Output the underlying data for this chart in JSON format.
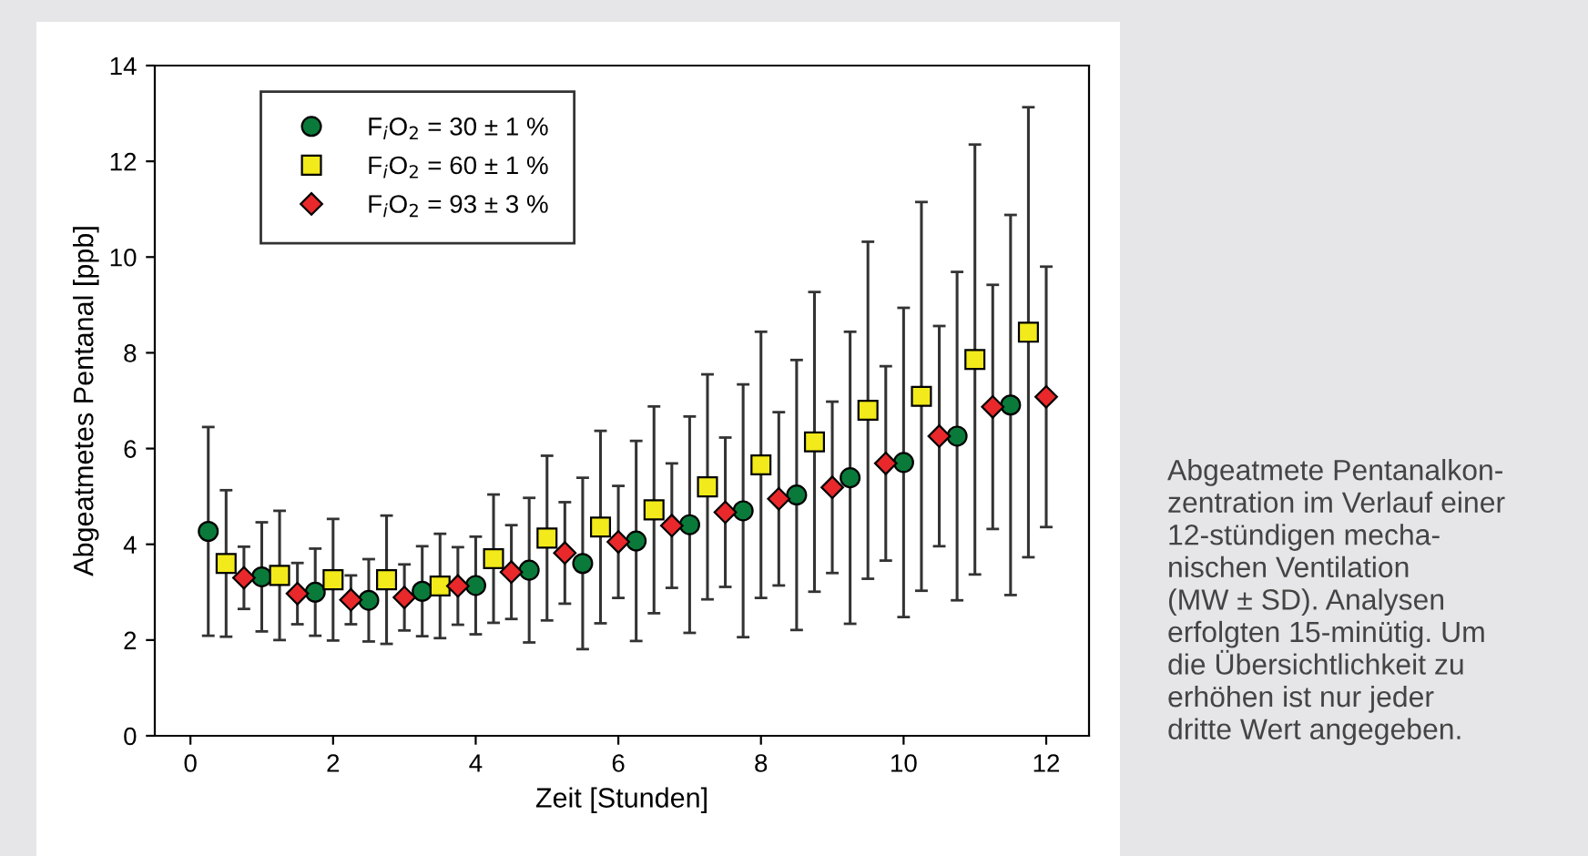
{
  "chart_data": {
    "type": "scatter",
    "xlabel": "Zeit [Stunden]",
    "ylabel": "Abgeatmetes Pentanal [ppb]",
    "xlim": [
      -0.5,
      12.6
    ],
    "ylim": [
      0,
      14
    ],
    "xticks": [
      0,
      2,
      4,
      6,
      8,
      10,
      12
    ],
    "yticks": [
      0,
      2,
      4,
      6,
      8,
      10,
      12,
      14
    ],
    "grid": false,
    "legend": "top left",
    "annotations": [
      "Abgeatmete Pentanalkon-\nzentration im Verlauf einer\n12-stündigen mecha-\nnischen Ventilation\n(MW ± SD). Analysen\nerfolgten 15-minütig. Um\ndie Übersichtlichkeit zu\nerhöhen ist nur jeder\ndritte Wert angegeben."
    ],
    "series": [
      {
        "name": "F$_{i}$O$_{2}$ = 30 ± 1 %",
        "color": "#0a7a3a",
        "marker": "circle",
        "x": [
          0.25,
          1.0,
          1.75,
          2.5,
          3.25,
          4.0,
          4.75,
          5.5,
          6.25,
          7.0,
          7.75,
          8.5,
          9.25,
          10.0,
          10.75,
          11.5
        ],
        "values": [
          4.27,
          3.32,
          3.0,
          2.83,
          3.02,
          3.14,
          3.46,
          3.6,
          4.07,
          4.41,
          4.7,
          5.03,
          5.39,
          5.71,
          6.26,
          6.91
        ],
        "errors": [
          2.18,
          1.14,
          0.91,
          0.86,
          0.94,
          1.02,
          1.51,
          1.79,
          2.09,
          2.26,
          2.64,
          2.82,
          3.05,
          3.23,
          3.43,
          3.97
        ]
      },
      {
        "name": "F$_{i}$O$_{2}$ = 60 ± 1 %",
        "color": "#f2ea1a",
        "marker": "square",
        "x": [
          0.5,
          1.25,
          2.0,
          2.75,
          3.5,
          4.25,
          5.0,
          5.75,
          6.5,
          7.25,
          8.0,
          8.75,
          9.5,
          10.25,
          11.0,
          11.75
        ],
        "values": [
          3.6,
          3.35,
          3.26,
          3.26,
          3.13,
          3.7,
          4.13,
          4.36,
          4.72,
          5.2,
          5.66,
          6.14,
          6.8,
          7.09,
          7.86,
          8.43
        ],
        "errors": [
          1.53,
          1.35,
          1.27,
          1.34,
          1.09,
          1.34,
          1.72,
          2.01,
          2.16,
          2.35,
          2.78,
          3.13,
          3.52,
          4.06,
          4.49,
          4.7
        ]
      },
      {
        "name": "F$_{i}$O$_{2}$ = 93 ± 3 %",
        "color": "#e8282a",
        "marker": "diamond",
        "x": [
          0.75,
          1.5,
          2.25,
          3.0,
          3.75,
          4.5,
          5.25,
          6.0,
          6.75,
          7.5,
          8.25,
          9.0,
          9.75,
          10.5,
          11.25,
          12.0
        ],
        "values": [
          3.3,
          2.97,
          2.84,
          2.89,
          3.13,
          3.42,
          3.82,
          4.05,
          4.39,
          4.67,
          4.95,
          5.19,
          5.69,
          6.26,
          6.87,
          7.08
        ],
        "errors": [
          0.65,
          0.64,
          0.51,
          0.69,
          0.81,
          0.98,
          1.06,
          1.17,
          1.3,
          1.56,
          1.81,
          1.79,
          2.03,
          2.3,
          2.55,
          2.72
        ]
      }
    ]
  }
}
